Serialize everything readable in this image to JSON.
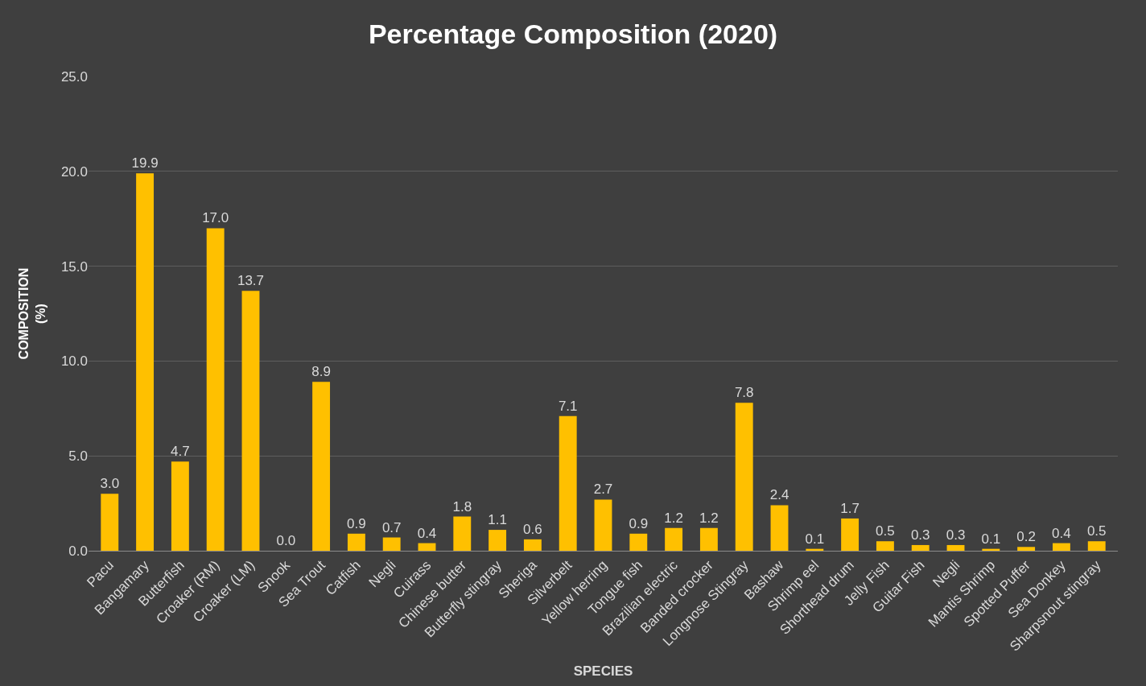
{
  "chart_data": {
    "type": "bar",
    "title": "Percentage Composition (2020)",
    "xlabel": "SPECIES",
    "ylabel": "COMPOSITION\n(%)",
    "categories": [
      "Pacu",
      "Bangamary",
      "Butterfish",
      "Croaker (RM)",
      "Croaker (LM)",
      "Snook",
      "Sea Trout",
      "Catfish",
      "Negli",
      "Cuirass",
      "Chinese butter",
      "Butterfly stingray",
      "Sheriga",
      "Silverbelt",
      "Yellow herring",
      "Tongue fish",
      "Brazilian electric",
      "Banded crocker",
      "Longnose Stingray",
      "Bashaw",
      "Shrimp eel",
      "Shorthead drum",
      "Jelly Fish",
      "Guitar Fish",
      "Negli",
      "Mantis Shrimp",
      "Spotted Puffer",
      "Sea Donkey",
      "Sharpsnout stingray"
    ],
    "values": [
      3.0,
      19.9,
      4.7,
      17.0,
      13.7,
      0.0,
      8.9,
      0.9,
      0.7,
      0.4,
      1.8,
      1.1,
      0.6,
      7.1,
      2.7,
      0.9,
      1.2,
      1.2,
      7.8,
      2.4,
      0.1,
      1.7,
      0.5,
      0.3,
      0.3,
      0.1,
      0.2,
      0.4,
      0.5
    ],
    "value_labels": [
      "3.0",
      "19.9",
      "4.7",
      "17.0",
      "13.7",
      "0.0",
      "8.9",
      "0.9",
      "0.7",
      "0.4",
      "1.8",
      "1.1",
      "0.6",
      "7.1",
      "2.7",
      "0.9",
      "1.2",
      "1.2",
      "7.8",
      "2.4",
      "0.1",
      "1.7",
      "0.5",
      "0.3",
      "0.3",
      "0.1",
      "0.2",
      "0.4",
      "0.5"
    ],
    "color": "#ffc000",
    "ylim": [
      0,
      25
    ],
    "yticks": [
      {
        "value": 0,
        "label": "0.0"
      },
      {
        "value": 5,
        "label": "5.0"
      },
      {
        "value": 10,
        "label": "10.0"
      },
      {
        "value": 15,
        "label": "15.0"
      },
      {
        "value": 20,
        "label": "20.0"
      },
      {
        "value": 25,
        "label": "25.0"
      }
    ],
    "grid": "y"
  }
}
